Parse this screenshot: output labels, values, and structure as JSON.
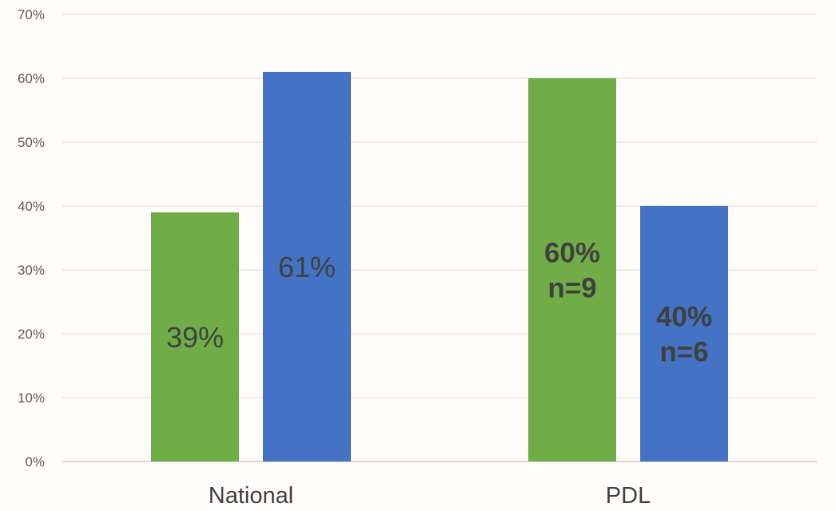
{
  "chart_data": {
    "type": "bar",
    "categories": [
      "National",
      "PDL"
    ],
    "series": [
      {
        "color": "#70ad47",
        "values": [
          39,
          60
        ]
      },
      {
        "color": "#4472c4",
        "values": [
          61,
          40
        ]
      }
    ],
    "ylim": [
      0,
      70
    ],
    "ytick_step": 10,
    "ytick_labels": [
      "0%",
      "10%",
      "20%",
      "30%",
      "40%",
      "50%",
      "60%",
      "70%"
    ],
    "grid": true,
    "legend": "none",
    "data_labels": [
      [
        [
          "39%"
        ],
        [
          "61%"
        ]
      ],
      [
        [
          "60%",
          "n=9"
        ],
        [
          "40%",
          "n=6"
        ]
      ]
    ]
  }
}
